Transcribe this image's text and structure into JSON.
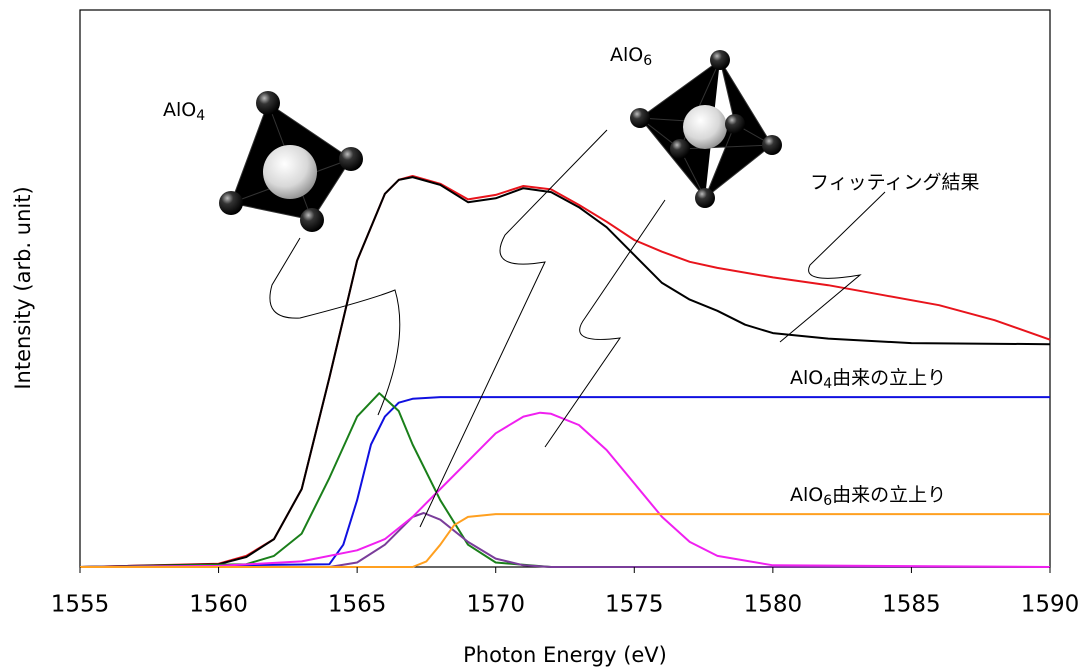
{
  "chart_data": {
    "type": "line",
    "x_label": "Photon Energy (eV)",
    "y_label": "Intensity (arb. unit)",
    "xlim": [
      1555,
      1590
    ],
    "xticks": [
      1555,
      1560,
      1565,
      1570,
      1575,
      1580,
      1585,
      1590
    ],
    "ylim": [
      0,
      1
    ],
    "series": [
      {
        "color": "#e8141c",
        "x": [
          1555,
          1560,
          1561,
          1562,
          1563,
          1564,
          1565,
          1566,
          1566.5,
          1567,
          1568,
          1569,
          1570,
          1571,
          1572,
          1573,
          1574,
          1575,
          1576,
          1577,
          1578,
          1580,
          1582,
          1584,
          1586,
          1588,
          1590
        ],
        "values": [
          0,
          0.006,
          0.02,
          0.05,
          0.14,
          0.34,
          0.55,
          0.67,
          0.695,
          0.702,
          0.688,
          0.66,
          0.668,
          0.684,
          0.678,
          0.65,
          0.62,
          0.587,
          0.566,
          0.548,
          0.537,
          0.52,
          0.506,
          0.488,
          0.47,
          0.443,
          0.408
        ]
      },
      {
        "color": "#000000",
        "x": [
          1555,
          1560,
          1561,
          1562,
          1563,
          1564,
          1565,
          1566,
          1566.5,
          1567,
          1568,
          1569,
          1570,
          1571,
          1572,
          1573,
          1574,
          1575,
          1576,
          1577,
          1578,
          1579,
          1580,
          1582,
          1585,
          1590
        ],
        "values": [
          0,
          0.005,
          0.018,
          0.05,
          0.14,
          0.34,
          0.55,
          0.67,
          0.695,
          0.7,
          0.686,
          0.655,
          0.662,
          0.68,
          0.673,
          0.646,
          0.61,
          0.56,
          0.51,
          0.48,
          0.46,
          0.435,
          0.42,
          0.41,
          0.402,
          0.4
        ]
      },
      {
        "color": "#1010e0",
        "x": [
          1555,
          1564,
          1564.5,
          1565,
          1565.5,
          1566,
          1566.5,
          1567,
          1568,
          1590
        ],
        "values": [
          0,
          0.005,
          0.04,
          0.12,
          0.22,
          0.27,
          0.295,
          0.302,
          0.305,
          0.305
        ]
      },
      {
        "color": "#1a7f1a",
        "x": [
          1555,
          1561,
          1562,
          1563,
          1564,
          1565,
          1565.8,
          1566.5,
          1567,
          1568,
          1569,
          1570,
          1572,
          1590
        ],
        "values": [
          0,
          0.005,
          0.02,
          0.06,
          0.16,
          0.27,
          0.312,
          0.28,
          0.22,
          0.12,
          0.04,
          0.008,
          0,
          0
        ]
      },
      {
        "color": "#7a3d9a",
        "x": [
          1555,
          1564,
          1565,
          1566,
          1567,
          1567.4,
          1568,
          1569,
          1570,
          1571,
          1572,
          1590
        ],
        "values": [
          0,
          0,
          0.008,
          0.04,
          0.09,
          0.097,
          0.085,
          0.045,
          0.015,
          0.003,
          0,
          0
        ]
      },
      {
        "color": "#f020f0",
        "x": [
          1555,
          1560,
          1563,
          1565,
          1566,
          1567,
          1568,
          1569,
          1570,
          1571,
          1571.6,
          1572,
          1573,
          1574,
          1575,
          1576,
          1577,
          1578,
          1580,
          1590
        ],
        "values": [
          0,
          0.002,
          0.01,
          0.03,
          0.05,
          0.09,
          0.14,
          0.19,
          0.24,
          0.27,
          0.277,
          0.275,
          0.255,
          0.21,
          0.15,
          0.09,
          0.045,
          0.02,
          0.003,
          0
        ]
      },
      {
        "color": "#ffa020",
        "x": [
          1555,
          1567,
          1567.5,
          1568,
          1568.5,
          1569,
          1570,
          1590
        ],
        "values": [
          0,
          0,
          0.01,
          0.04,
          0.075,
          0.09,
          0.095,
          0.095
        ]
      }
    ],
    "annotations": [
      {
        "text": "AlO",
        "sub": "4"
      },
      {
        "text": "AlO",
        "sub": "6"
      },
      {
        "text": "フィッティング結果"
      },
      {
        "text": "AlO",
        "sub": "4",
        "suffix": "由来の立上り"
      },
      {
        "text": "AlO",
        "sub": "6",
        "suffix": "由来の立上り"
      }
    ]
  }
}
